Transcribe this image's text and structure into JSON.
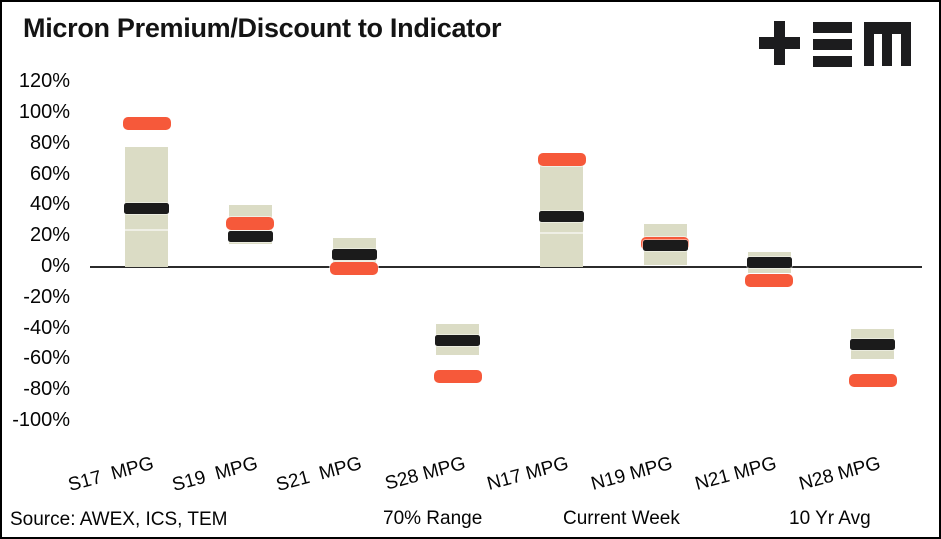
{
  "header": {
    "title": "Micron Premium/Discount to Indicator",
    "logo": "TEM"
  },
  "footer": {
    "source": "Source: AWEX, ICS, TEM"
  },
  "colors": {
    "range": "#DBDCC5",
    "current_week": "#F6593A",
    "ten_yr_avg": "#1B1B1B",
    "axis": "#2B2B2B"
  },
  "chart_data": {
    "type": "bar",
    "subtype": "floating-range-with-markers",
    "title": "Micron Premium/Discount to Indicator",
    "categories": [
      "S17  MPG",
      "S19  MPG",
      "S21  MPG",
      "S28 MPG",
      "N17 MPG",
      "N19 MPG",
      "N21 MPG",
      "N28 MPG"
    ],
    "series": [
      {
        "name": "70% Range",
        "type": "floating-bar",
        "color": "#DBDCC5",
        "low": [
          0,
          15,
          2,
          -57,
          0,
          1,
          -4,
          -60
        ],
        "high": [
          78,
          40,
          19,
          -37,
          66,
          28,
          10,
          -40
        ],
        "divider": [
          24,
          null,
          null,
          null,
          22,
          null,
          null,
          null
        ]
      },
      {
        "name": "Current Week",
        "type": "marker",
        "color": "#F6593A",
        "values": [
          93,
          28,
          -1,
          -71,
          70,
          15,
          -9,
          -74
        ]
      },
      {
        "name": "10 Yr Avg",
        "type": "marker",
        "color": "#1B1B1B",
        "values": [
          38,
          20,
          8,
          -48,
          33,
          14,
          3,
          -50
        ]
      }
    ],
    "y_axis": {
      "min": -100,
      "max": 120,
      "step": 20,
      "tick_suffix": "%"
    },
    "x_axis": {
      "label_rotation_deg": -15
    },
    "grid": false,
    "legend_position": "bottom"
  }
}
